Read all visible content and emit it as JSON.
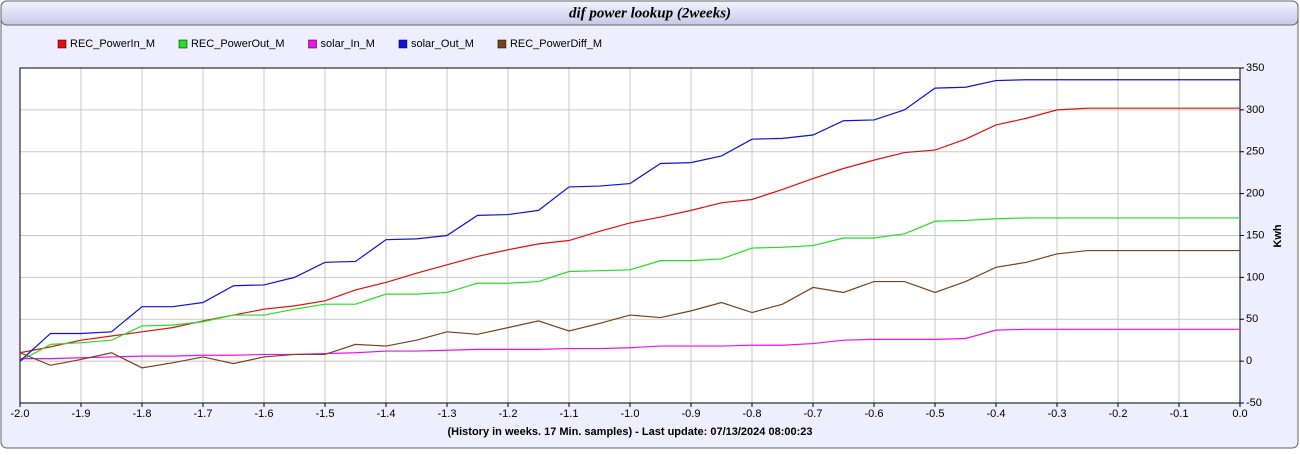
{
  "chart_data": {
    "type": "line",
    "title": "dif power lookup (2weeks)",
    "x_label": "(History in weeks. 17 Min. samples) - Last update: 07/13/2024 08:00:23",
    "y_label": "Kwh",
    "legend": "top-left",
    "grid": true,
    "xlim": [
      -2,
      0
    ],
    "ylim": [
      -50,
      350
    ],
    "xticks": [
      {
        "value": -2,
        "label": "-2.0"
      },
      -1.9,
      -1.8,
      -1.7,
      -1.6,
      -1.5,
      -1.4,
      -1.3,
      -1.2,
      -1.1,
      {
        "value": -1,
        "label": "-1.0"
      },
      -0.9,
      -0.8,
      -0.7,
      -0.6,
      -0.5,
      -0.4,
      -0.3,
      -0.2,
      -0.1,
      {
        "value": 0,
        "label": "0.0"
      }
    ],
    "yticks": [
      -50,
      0,
      50,
      100,
      150,
      200,
      250,
      300,
      350
    ],
    "x": [
      -2,
      -1.95,
      -1.9,
      -1.85,
      -1.8,
      -1.75,
      -1.7,
      -1.65,
      -1.6,
      -1.55,
      -1.5,
      -1.45,
      -1.4,
      -1.35,
      -1.3,
      -1.25,
      -1.2,
      -1.15,
      -1.1,
      -1.05,
      -1,
      -0.95,
      -0.9,
      -0.85,
      -0.8,
      -0.75,
      -0.7,
      -0.65,
      -0.6,
      -0.55,
      -0.5,
      -0.45,
      -0.4,
      -0.35,
      -0.3,
      -0.25,
      -0.2,
      -0.15,
      -0.1,
      -0.05,
      0
    ],
    "series": [
      {
        "name": "REC_PowerIn_M",
        "color": "#e01010",
        "values": [
          10,
          17,
          25,
          30,
          35,
          40,
          48,
          55,
          62,
          66,
          72,
          85,
          94,
          105,
          115,
          125,
          133,
          140,
          144,
          155,
          165,
          172,
          180,
          189,
          193,
          205,
          218,
          230,
          240,
          249,
          252,
          265,
          282,
          290,
          300,
          302,
          302,
          302,
          302,
          302,
          302
        ]
      },
      {
        "name": "REC_PowerOut_M",
        "color": "#22e022",
        "values": [
          0,
          20,
          22,
          25,
          42,
          43,
          47,
          55,
          55,
          62,
          68,
          68,
          80,
          80,
          82,
          93,
          93,
          95,
          107,
          108,
          109,
          120,
          120,
          122,
          135,
          136,
          138,
          147,
          147,
          152,
          167,
          168,
          170,
          171,
          171,
          171,
          171,
          171,
          171,
          171,
          171
        ]
      },
      {
        "name": "solar_In_M",
        "color": "#ee10ee",
        "values": [
          3,
          3,
          4,
          5,
          6,
          6,
          7,
          7,
          8,
          8,
          9,
          10,
          12,
          12,
          13,
          14,
          14,
          14,
          15,
          15,
          16,
          18,
          18,
          18,
          19,
          19,
          21,
          25,
          26,
          26,
          26,
          27,
          37,
          38,
          38,
          38,
          38,
          38,
          38,
          38,
          38
        ]
      },
      {
        "name": "solar_Out_M",
        "color": "#1010e0",
        "values": [
          0,
          33,
          33,
          35,
          65,
          65,
          70,
          90,
          91,
          100,
          118,
          119,
          145,
          146,
          150,
          174,
          175,
          180,
          208,
          209,
          212,
          236,
          237,
          245,
          265,
          266,
          270,
          287,
          288,
          300,
          326,
          327,
          335,
          336,
          336,
          336,
          336,
          336,
          336,
          336,
          336
        ]
      },
      {
        "name": "REC_PowerDiff_M",
        "color": "#7a4218",
        "values": [
          10,
          -5,
          2,
          10,
          -8,
          -2,
          5,
          -3,
          5,
          8,
          8,
          20,
          18,
          25,
          35,
          32,
          40,
          48,
          36,
          45,
          55,
          52,
          60,
          70,
          58,
          68,
          88,
          82,
          95,
          95,
          82,
          95,
          112,
          118,
          128,
          132,
          132,
          132,
          132,
          132,
          132
        ]
      }
    ]
  }
}
